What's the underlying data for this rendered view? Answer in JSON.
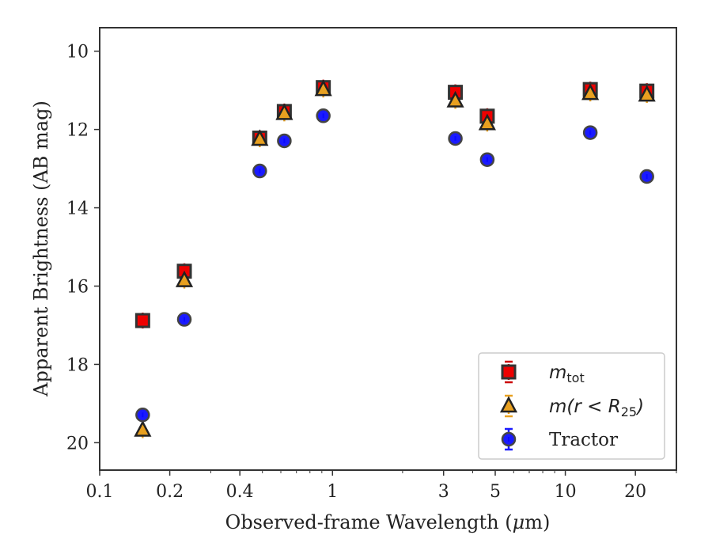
{
  "chart_data": {
    "type": "scatter",
    "xscale": "log",
    "yaxis_inverted": true,
    "xlim": [
      0.1,
      30
    ],
    "ylim": [
      9.4,
      20.7
    ],
    "xlabel_prefix": "Observed-frame Wavelength (",
    "xlabel_mu": "μ",
    "xlabel_suffix": "m)",
    "ylabel": "Apparent Brightness (AB mag)",
    "xticks": [
      {
        "value": 0.1,
        "label": "0.1"
      },
      {
        "value": 0.2,
        "label": "0.2"
      },
      {
        "value": 0.4,
        "label": "0.4"
      },
      {
        "value": 1,
        "label": "1"
      },
      {
        "value": 3,
        "label": "3"
      },
      {
        "value": 5,
        "label": "5"
      },
      {
        "value": 10,
        "label": "10"
      },
      {
        "value": 20,
        "label": "20"
      }
    ],
    "yticks": [
      {
        "value": 10,
        "label": "10"
      },
      {
        "value": 12,
        "label": "12"
      },
      {
        "value": 14,
        "label": "14"
      },
      {
        "value": 16,
        "label": "16"
      },
      {
        "value": 18,
        "label": "18"
      },
      {
        "value": 20,
        "label": "20"
      }
    ],
    "legend_position": "lower right",
    "series": [
      {
        "name": "m_tot",
        "marker": "square",
        "color": "#ee0000",
        "edge_color": "#333333",
        "errbar_color": "#cc0000",
        "points": [
          {
            "x": 0.153,
            "y": 16.88
          },
          {
            "x": 0.231,
            "y": 15.62
          },
          {
            "x": 0.487,
            "y": 12.22
          },
          {
            "x": 0.621,
            "y": 11.54
          },
          {
            "x": 0.913,
            "y": 10.93
          },
          {
            "x": 3.37,
            "y": 11.05
          },
          {
            "x": 4.62,
            "y": 11.66
          },
          {
            "x": 12.8,
            "y": 10.98
          },
          {
            "x": 22.4,
            "y": 11.02
          }
        ]
      },
      {
        "name": "m(r<R25)",
        "marker": "triangle",
        "color": "#e8a020",
        "edge_color": "#222222",
        "errbar_color": "#e8a020",
        "points": [
          {
            "x": 0.153,
            "y": 19.68
          },
          {
            "x": 0.231,
            "y": 15.86
          },
          {
            "x": 0.487,
            "y": 12.25
          },
          {
            "x": 0.621,
            "y": 11.59
          },
          {
            "x": 0.913,
            "y": 10.98
          },
          {
            "x": 3.37,
            "y": 11.27
          },
          {
            "x": 4.62,
            "y": 11.85
          },
          {
            "x": 12.8,
            "y": 11.08
          },
          {
            "x": 22.4,
            "y": 11.12
          }
        ]
      },
      {
        "name": "Tractor",
        "marker": "circle",
        "color": "#1a1aff",
        "edge_color": "#444444",
        "errbar_color": "#1a1aff",
        "points": [
          {
            "x": 0.153,
            "y": 19.29
          },
          {
            "x": 0.231,
            "y": 16.85
          },
          {
            "x": 0.487,
            "y": 13.06
          },
          {
            "x": 0.621,
            "y": 12.29
          },
          {
            "x": 0.913,
            "y": 11.65
          },
          {
            "x": 3.37,
            "y": 12.23
          },
          {
            "x": 4.62,
            "y": 12.77
          },
          {
            "x": 12.8,
            "y": 12.08
          },
          {
            "x": 22.4,
            "y": 13.2
          }
        ]
      }
    ],
    "legend": {
      "mtot_base": "m",
      "mtot_sub": "tot",
      "mr_prefix": "m(r < R",
      "mr_sub": "25",
      "mr_suffix": ")",
      "tractor": "Tractor"
    }
  }
}
